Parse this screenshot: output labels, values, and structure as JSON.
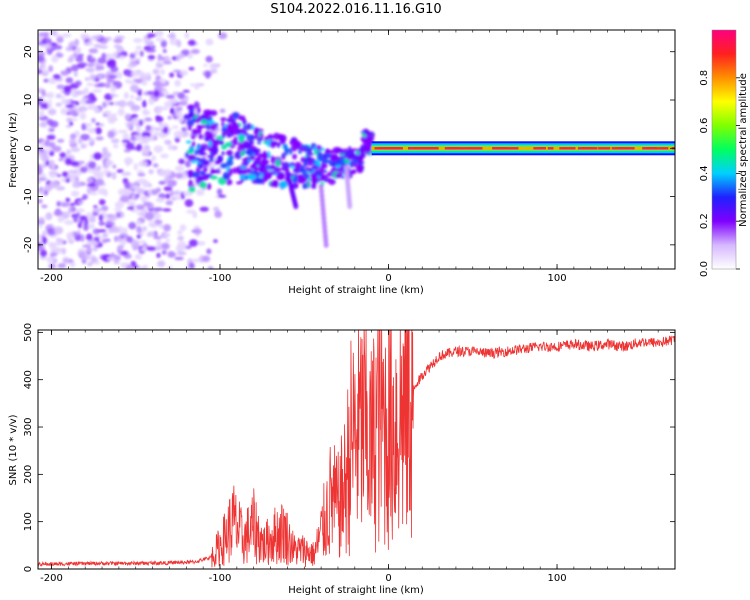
{
  "title": "S104.2022.016.11.16.G10",
  "chart_data": [
    {
      "type": "heatmap",
      "xlabel": "Height of straight line (km)",
      "ylabel": "Frequency (Hz)",
      "xlim": [
        -208,
        170
      ],
      "ylim": [
        -25,
        24.5
      ],
      "x_ticks": [
        -200,
        -100,
        0,
        100
      ],
      "y_ticks": [
        20,
        10,
        0,
        -10,
        -20
      ],
      "colorbar": {
        "label": "Normalized spectral amplitude",
        "range": [
          0.0,
          1.0
        ],
        "ticks": [
          0.0,
          0.2,
          0.4,
          0.6,
          0.8
        ],
        "colors": [
          "#ffffff",
          "#d6b8ff",
          "#7f00ff",
          "#2020ff",
          "#00d0ff",
          "#00ff60",
          "#80ff00",
          "#ffff00",
          "#ff9000",
          "#ff2020",
          "#ff0080"
        ]
      },
      "features": [
        {
          "name": "noise",
          "x_range": [
            -208,
            -110
          ],
          "y_range": [
            -25,
            24
          ],
          "amplitude": 0.1
        },
        {
          "name": "scattered",
          "x_range": [
            -120,
            -10
          ],
          "freq_center": 0,
          "amplitude": 0.2
        },
        {
          "name": "carrier",
          "x_range": [
            -10,
            170
          ],
          "frequency": 0.0,
          "amplitude": 0.85
        }
      ]
    },
    {
      "type": "line",
      "xlabel": "Height of straight line (km)",
      "ylabel": "SNR (10 * v/v)",
      "xlim": [
        -208,
        170
      ],
      "ylim": [
        0,
        505
      ],
      "x_ticks": [
        -200,
        -100,
        0,
        100
      ],
      "y_ticks": [
        0,
        100,
        200,
        300,
        400,
        500
      ],
      "color": "#ee3333",
      "series": [
        {
          "x": [
            -208,
            -190,
            -170,
            -150,
            -130,
            -115,
            -105,
            -98,
            -92,
            -86,
            -80,
            -74,
            -68,
            -62,
            -56,
            -50,
            -44,
            -38,
            -34,
            -30,
            -26,
            -22,
            -18,
            -14,
            -10,
            -6,
            -2,
            2,
            6,
            10,
            15,
            20,
            25,
            30,
            35,
            40,
            50,
            60,
            70,
            80,
            90,
            100,
            110,
            120,
            130,
            140,
            150,
            160,
            170
          ],
          "y": [
            10,
            11,
            12,
            12,
            13,
            15,
            25,
            60,
            100,
            60,
            90,
            50,
            70,
            80,
            40,
            40,
            30,
            100,
            150,
            130,
            170,
            270,
            290,
            300,
            250,
            330,
            300,
            300,
            320,
            340,
            380,
            410,
            430,
            450,
            455,
            460,
            460,
            455,
            460,
            465,
            470,
            470,
            475,
            470,
            475,
            470,
            480,
            478,
            485
          ]
        }
      ]
    }
  ]
}
